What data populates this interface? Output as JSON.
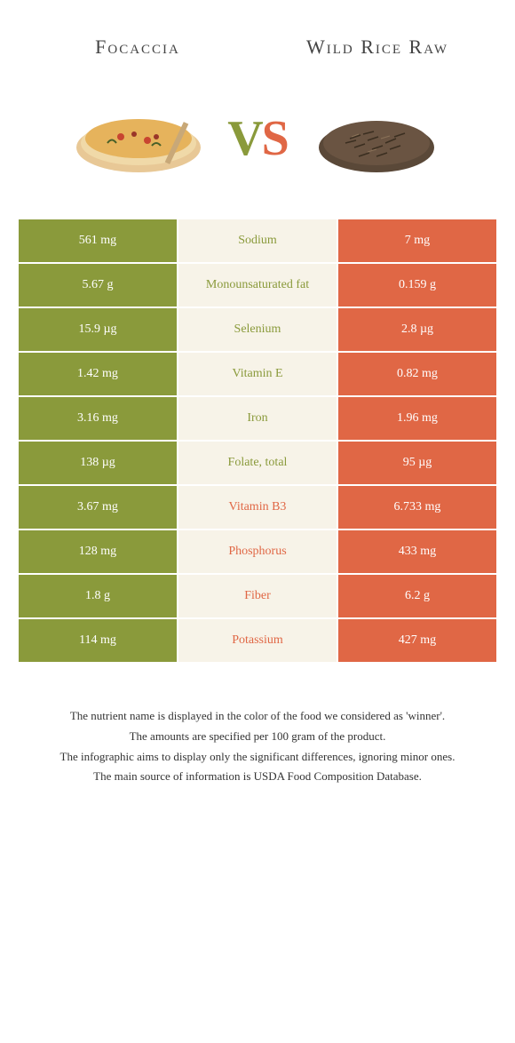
{
  "header": {
    "left": "Focaccia",
    "right": "Wild Rice Raw"
  },
  "vs": {
    "v": "V",
    "s": "S"
  },
  "colors": {
    "green": "#8a9a3b",
    "orange": "#e06745",
    "cream": "#f7f3e8"
  },
  "rows": [
    {
      "left": "561 mg",
      "label": "Sodium",
      "right": "7 mg",
      "winner": "green"
    },
    {
      "left": "5.67 g",
      "label": "Monounsaturated fat",
      "right": "0.159 g",
      "winner": "green"
    },
    {
      "left": "15.9 µg",
      "label": "Selenium",
      "right": "2.8 µg",
      "winner": "green"
    },
    {
      "left": "1.42 mg",
      "label": "Vitamin E",
      "right": "0.82 mg",
      "winner": "green"
    },
    {
      "left": "3.16 mg",
      "label": "Iron",
      "right": "1.96 mg",
      "winner": "green"
    },
    {
      "left": "138 µg",
      "label": "Folate, total",
      "right": "95 µg",
      "winner": "green"
    },
    {
      "left": "3.67 mg",
      "label": "Vitamin B3",
      "right": "6.733 mg",
      "winner": "orange"
    },
    {
      "left": "128 mg",
      "label": "Phosphorus",
      "right": "433 mg",
      "winner": "orange"
    },
    {
      "left": "1.8 g",
      "label": "Fiber",
      "right": "6.2 g",
      "winner": "orange"
    },
    {
      "left": "114 mg",
      "label": "Potassium",
      "right": "427 mg",
      "winner": "orange"
    }
  ],
  "footer": {
    "l1": "The nutrient name is displayed in the color of the food we considered as 'winner'.",
    "l2": "The amounts are specified per 100 gram of the product.",
    "l3": "The infographic aims to display only the significant differences, ignoring minor ones.",
    "l4": "The main source of information is USDA Food Composition Database."
  }
}
